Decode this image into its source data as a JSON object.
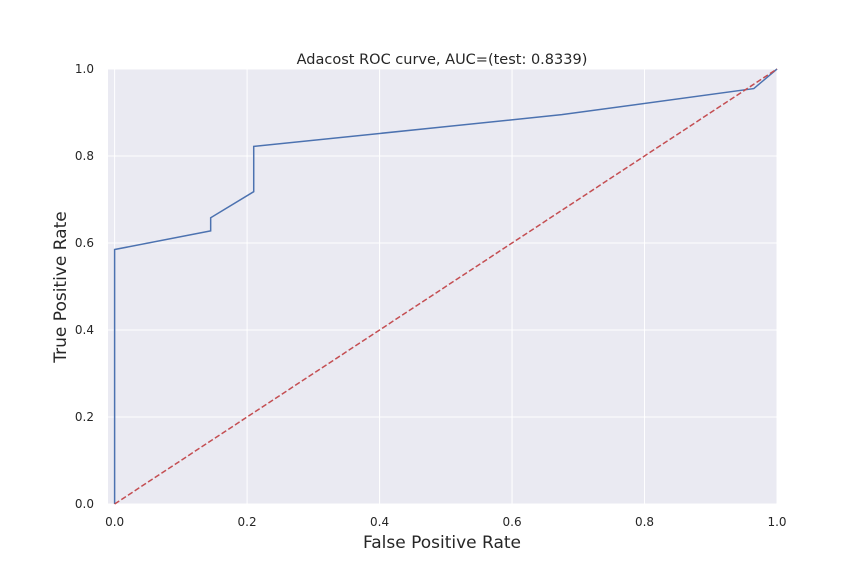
{
  "chart_data": {
    "type": "line",
    "title": "Adacost ROC curve, AUC=(test: 0.8339)",
    "xlabel": "False Positive Rate",
    "ylabel": "True Positive Rate",
    "xlim": [
      -0.01,
      1.0
    ],
    "ylim": [
      0.0,
      1.0
    ],
    "xticks": [
      "0.0",
      "0.2",
      "0.4",
      "0.6",
      "0.8",
      "1.0"
    ],
    "yticks": [
      "0.0",
      "0.2",
      "0.4",
      "0.6",
      "0.8",
      "1.0"
    ],
    "grid": true,
    "background_color": "#eaeaf2",
    "grid_color": "#ffffff",
    "series": [
      {
        "color": "#4c72b0",
        "style": "solid",
        "x": [
          0.0,
          0.0,
          0.145,
          0.145,
          0.21,
          0.21,
          0.675,
          0.965,
          1.0
        ],
        "y": [
          0.0,
          0.585,
          0.628,
          0.658,
          0.718,
          0.822,
          0.895,
          0.955,
          1.0
        ]
      },
      {
        "color": "#c44e52",
        "style": "dashed",
        "x": [
          0.0,
          1.0
        ],
        "y": [
          0.0,
          1.0
        ]
      }
    ]
  }
}
